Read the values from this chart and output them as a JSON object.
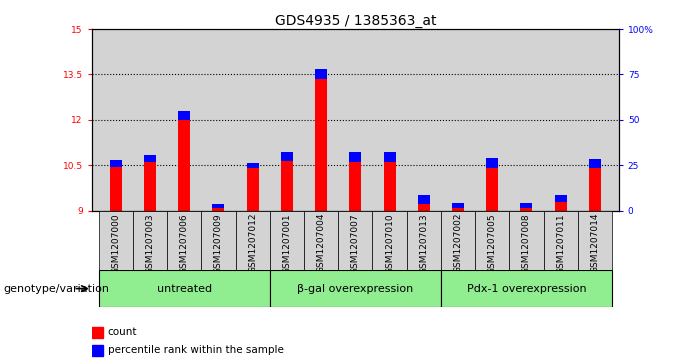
{
  "title": "GDS4935 / 1385363_at",
  "samples": [
    "GSM1207000",
    "GSM1207003",
    "GSM1207006",
    "GSM1207009",
    "GSM1207012",
    "GSM1207001",
    "GSM1207004",
    "GSM1207007",
    "GSM1207010",
    "GSM1207013",
    "GSM1207002",
    "GSM1207005",
    "GSM1207008",
    "GSM1207011",
    "GSM1207014"
  ],
  "red_values": [
    10.45,
    10.6,
    12.0,
    9.08,
    10.42,
    10.65,
    13.35,
    10.62,
    10.6,
    9.2,
    9.08,
    10.42,
    9.08,
    9.28,
    10.42
  ],
  "blue_values": [
    0.22,
    0.22,
    0.28,
    0.12,
    0.15,
    0.28,
    0.32,
    0.32,
    0.32,
    0.32,
    0.18,
    0.32,
    0.18,
    0.22,
    0.28
  ],
  "ymin": 9.0,
  "ymax": 15.0,
  "yticks": [
    9,
    10.5,
    12,
    13.5,
    15
  ],
  "ytick_labels": [
    "9",
    "10.5",
    "12",
    "13.5",
    "15"
  ],
  "right_ytick_vals": [
    0,
    25,
    50,
    75,
    100
  ],
  "right_ylabels": [
    "0",
    "25",
    "50",
    "75",
    "100%"
  ],
  "groups": [
    {
      "label": "untreated",
      "start": 0,
      "end": 5
    },
    {
      "label": "β-gal overexpression",
      "start": 5,
      "end": 10
    },
    {
      "label": "Pdx-1 overexpression",
      "start": 10,
      "end": 15
    }
  ],
  "group_label_prefix": "genotype/variation",
  "legend_red": "count",
  "legend_blue": "percentile rank within the sample",
  "bar_width": 0.35,
  "bg_color": "#d3d3d3",
  "group_bg_color": "#90ee90",
  "grid_color": "black",
  "title_fontsize": 10,
  "tick_fontsize": 6.5,
  "label_fontsize": 8
}
